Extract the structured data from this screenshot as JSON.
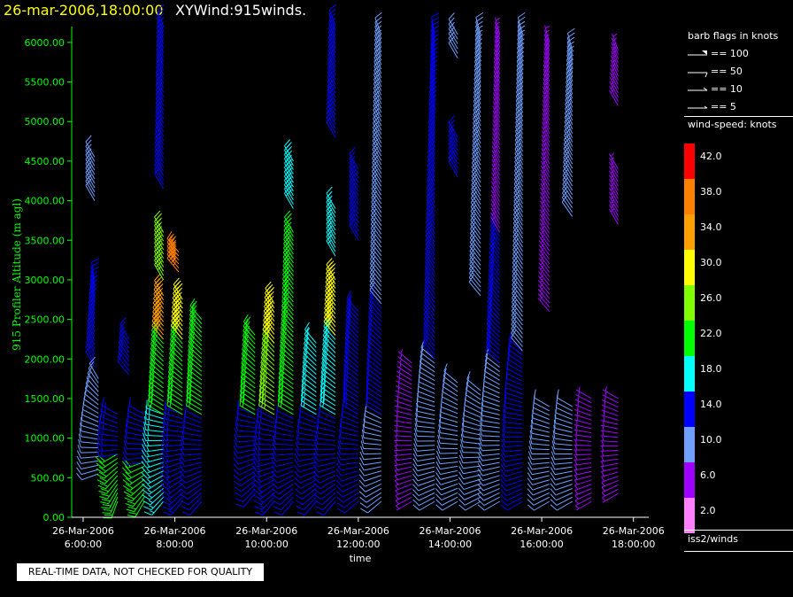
{
  "header": {
    "date_time": "26-mar-2006,18:00:00",
    "plot_name": "XYWind:915winds."
  },
  "legend": {
    "barb_title": "barb flags in knots",
    "barb_entries": [
      {
        "label": "== 100",
        "icon": "barb-pennant-100-icon"
      },
      {
        "label": "== 50",
        "icon": "barb-pennant-50-icon"
      },
      {
        "label": "== 10",
        "icon": "barb-full-line-10-icon"
      },
      {
        "label": "== 5",
        "icon": "barb-half-line-5-icon"
      }
    ],
    "speed_title": "wind-speed: knots",
    "speed_scale": [
      {
        "label": "42.0",
        "color": "#ff0000"
      },
      {
        "label": "38.0",
        "color": "#ff7f00"
      },
      {
        "label": "34.0",
        "color": "#ff9f00"
      },
      {
        "label": "30.0",
        "color": "#ffff00"
      },
      {
        "label": "26.0",
        "color": "#7fff00"
      },
      {
        "label": "22.0",
        "color": "#00ff00"
      },
      {
        "label": "18.0",
        "color": "#00ffff"
      },
      {
        "label": "14.0",
        "color": "#0000ff"
      },
      {
        "label": "10.0",
        "color": "#6f9fff"
      },
      {
        "label": "6.0",
        "color": "#9f00ff"
      },
      {
        "label": "2.0",
        "color": "#ff7fff"
      }
    ],
    "source": "iss2/winds"
  },
  "quality_note": "REAL-TIME DATA, NOT CHECKED FOR QUALITY",
  "chart_data": {
    "type": "wind-barb time-height",
    "xlabel": "time",
    "ylabel": "915 Profiler Altitude (m agl)",
    "xlim": [
      "2006-03-26 05:45",
      "2006-03-26 18:20"
    ],
    "ylim": [
      0,
      6200
    ],
    "x_ticks": [
      {
        "date": "26-Mar-2006",
        "time": "6:00:00"
      },
      {
        "date": "26-Mar-2006",
        "time": "8:00:00"
      },
      {
        "date": "26-Mar-2006",
        "time": "10:00:00"
      },
      {
        "date": "26-Mar-2006",
        "time": "12:00:00"
      },
      {
        "date": "26-Mar-2006",
        "time": "14:00:00"
      },
      {
        "date": "26-Mar-2006",
        "time": "16:00:00"
      },
      {
        "date": "26-Mar-2006",
        "time": "18:00:00"
      }
    ],
    "y_ticks": [
      "0.00",
      "500.00",
      "1000.00",
      "1500.00",
      "2000.00",
      "2500.00",
      "3000.00",
      "3500.00",
      "4000.00",
      "4500.00",
      "5000.00",
      "5500.00",
      "6000.00"
    ],
    "axis_color": "#00ff00",
    "profiles": [
      {
        "time": "06:15",
        "segments": [
          {
            "from": 1900,
            "to": 3000,
            "speed": 12,
            "dir_from": 330,
            "dir_to": 350
          },
          {
            "from": 4000,
            "to": 4550,
            "speed": 10,
            "dir_from": 330,
            "dir_to": 330
          }
        ]
      },
      {
        "time": "06:20",
        "segments": [
          {
            "from": 550,
            "to": 1750,
            "speed": 10,
            "dir_from": 250,
            "dir_to": 330
          }
        ]
      },
      {
        "time": "06:45",
        "segments": [
          {
            "from": 200,
            "to": 800,
            "speed": 22,
            "dir_from": 200,
            "dir_to": 240
          },
          {
            "from": 800,
            "to": 1300,
            "speed": 14,
            "dir_from": 260,
            "dir_to": 300
          }
        ]
      },
      {
        "time": "07:00",
        "segments": [
          {
            "from": 1800,
            "to": 2250,
            "speed": 12,
            "dir_from": 320,
            "dir_to": 330
          }
        ]
      },
      {
        "time": "07:20",
        "segments": [
          {
            "from": 200,
            "to": 700,
            "speed": 22,
            "dir_from": 210,
            "dir_to": 250
          },
          {
            "from": 700,
            "to": 1300,
            "speed": 12,
            "dir_from": 260,
            "dir_to": 300
          }
        ]
      },
      {
        "time": "07:45",
        "segments": [
          {
            "from": 200,
            "to": 1300,
            "speed": 16,
            "dir_from": 220,
            "dir_to": 290
          },
          {
            "from": 1300,
            "to": 2250,
            "speed": 22,
            "dir_from": 300,
            "dir_to": 320
          },
          {
            "from": 2250,
            "to": 2800,
            "speed": 32,
            "dir_from": 320,
            "dir_to": 330
          },
          {
            "from": 3000,
            "to": 3600,
            "speed": 26,
            "dir_from": 330,
            "dir_to": 330
          },
          {
            "from": 4150,
            "to": 6200,
            "speed": 12,
            "dir_from": 330,
            "dir_to": 340
          }
        ]
      },
      {
        "time": "08:05",
        "segments": [
          {
            "from": 3100,
            "to": 3350,
            "speed": 36,
            "dir_from": 320,
            "dir_to": 320
          }
        ]
      },
      {
        "time": "08:10",
        "segments": [
          {
            "from": 200,
            "to": 1300,
            "speed": 14,
            "dir_from": 220,
            "dir_to": 290
          },
          {
            "from": 1300,
            "to": 2250,
            "speed": 20,
            "dir_from": 300,
            "dir_to": 320
          },
          {
            "from": 2250,
            "to": 2750,
            "speed": 30,
            "dir_from": 320,
            "dir_to": 330
          }
        ]
      },
      {
        "time": "08:35",
        "segments": [
          {
            "from": 200,
            "to": 1300,
            "speed": 12,
            "dir_from": 220,
            "dir_to": 300
          },
          {
            "from": 1300,
            "to": 2500,
            "speed": 22,
            "dir_from": 300,
            "dir_to": 320
          }
        ]
      },
      {
        "time": "09:45",
        "segments": [
          {
            "from": 300,
            "to": 1300,
            "speed": 12,
            "dir_from": 220,
            "dir_to": 290
          },
          {
            "from": 1300,
            "to": 2300,
            "speed": 22,
            "dir_from": 300,
            "dir_to": 320
          }
        ]
      },
      {
        "time": "10:10",
        "segments": [
          {
            "from": 200,
            "to": 1300,
            "speed": 14,
            "dir_from": 220,
            "dir_to": 300
          },
          {
            "from": 1300,
            "to": 2200,
            "speed": 24,
            "dir_from": 300,
            "dir_to": 320
          },
          {
            "from": 2200,
            "to": 2700,
            "speed": 30,
            "dir_from": 320,
            "dir_to": 330
          }
        ]
      },
      {
        "time": "10:35",
        "segments": [
          {
            "from": 200,
            "to": 1300,
            "speed": 12,
            "dir_from": 220,
            "dir_to": 300
          },
          {
            "from": 1300,
            "to": 2500,
            "speed": 20,
            "dir_from": 300,
            "dir_to": 320
          },
          {
            "from": 2500,
            "to": 3600,
            "speed": 22,
            "dir_from": 320,
            "dir_to": 330
          },
          {
            "from": 3900,
            "to": 4500,
            "speed": 18,
            "dir_from": 330,
            "dir_to": 330
          }
        ]
      },
      {
        "time": "11:05",
        "segments": [
          {
            "from": 200,
            "to": 1300,
            "speed": 12,
            "dir_from": 220,
            "dir_to": 300
          },
          {
            "from": 1300,
            "to": 2200,
            "speed": 16,
            "dir_from": 300,
            "dir_to": 320
          }
        ]
      },
      {
        "time": "11:30",
        "segments": [
          {
            "from": 200,
            "to": 1300,
            "speed": 12,
            "dir_from": 220,
            "dir_to": 300
          },
          {
            "from": 1300,
            "to": 2300,
            "speed": 18,
            "dir_from": 300,
            "dir_to": 320
          },
          {
            "from": 2300,
            "to": 3000,
            "speed": 28,
            "dir_from": 320,
            "dir_to": 330
          },
          {
            "from": 3300,
            "to": 3900,
            "speed": 16,
            "dir_from": 330,
            "dir_to": 330
          },
          {
            "from": 4800,
            "to": 6200,
            "speed": 12,
            "dir_from": 330,
            "dir_to": 340
          }
        ]
      },
      {
        "time": "12:00",
        "segments": [
          {
            "from": 200,
            "to": 1300,
            "speed": 12,
            "dir_from": 230,
            "dir_to": 300
          },
          {
            "from": 1300,
            "to": 2600,
            "speed": 14,
            "dir_from": 300,
            "dir_to": 320
          },
          {
            "from": 3500,
            "to": 4400,
            "speed": 12,
            "dir_from": 330,
            "dir_to": 330
          }
        ]
      },
      {
        "time": "12:30",
        "segments": [
          {
            "from": 200,
            "to": 1300,
            "speed": 8,
            "dir_from": 230,
            "dir_to": 300
          },
          {
            "from": 1300,
            "to": 2700,
            "speed": 12,
            "dir_from": 300,
            "dir_to": 320
          },
          {
            "from": 2700,
            "to": 6100,
            "speed": 8,
            "dir_from": 320,
            "dir_to": 340
          }
        ]
      },
      {
        "time": "13:10",
        "segments": [
          {
            "from": 200,
            "to": 1950,
            "speed": 7,
            "dir_from": 240,
            "dir_to": 310
          }
        ]
      },
      {
        "time": "13:40",
        "segments": [
          {
            "from": 200,
            "to": 2000,
            "speed": 10,
            "dir_from": 240,
            "dir_to": 310
          },
          {
            "from": 2000,
            "to": 6100,
            "speed": 12,
            "dir_from": 320,
            "dir_to": 350
          }
        ]
      },
      {
        "time": "14:10",
        "segments": [
          {
            "from": 200,
            "to": 1700,
            "speed": 10,
            "dir_from": 240,
            "dir_to": 310
          },
          {
            "from": 4300,
            "to": 4800,
            "speed": 12,
            "dir_from": 330,
            "dir_to": 330
          },
          {
            "from": 5800,
            "to": 6100,
            "speed": 10,
            "dir_from": 330,
            "dir_to": 330
          }
        ]
      },
      {
        "time": "14:40",
        "segments": [
          {
            "from": 200,
            "to": 1600,
            "speed": 9,
            "dir_from": 240,
            "dir_to": 310
          },
          {
            "from": 2800,
            "to": 6100,
            "speed": 10,
            "dir_from": 320,
            "dir_to": 345
          }
        ]
      },
      {
        "time": "15:05",
        "segments": [
          {
            "from": 200,
            "to": 1950,
            "speed": 11,
            "dir_from": 240,
            "dir_to": 310
          },
          {
            "from": 1950,
            "to": 3600,
            "speed": 13,
            "dir_from": 310,
            "dir_to": 330
          },
          {
            "from": 3600,
            "to": 6100,
            "speed": 7,
            "dir_from": 330,
            "dir_to": 345
          }
        ]
      },
      {
        "time": "15:35",
        "segments": [
          {
            "from": 200,
            "to": 2100,
            "speed": 12,
            "dir_from": 240,
            "dir_to": 310
          },
          {
            "from": 2100,
            "to": 6100,
            "speed": 8,
            "dir_from": 320,
            "dir_to": 345
          }
        ]
      },
      {
        "time": "16:10",
        "segments": [
          {
            "from": 200,
            "to": 1400,
            "speed": 10,
            "dir_from": 240,
            "dir_to": 300
          },
          {
            "from": 2600,
            "to": 6000,
            "speed": 7,
            "dir_from": 320,
            "dir_to": 345
          }
        ]
      },
      {
        "time": "16:40",
        "segments": [
          {
            "from": 200,
            "to": 1400,
            "speed": 10,
            "dir_from": 240,
            "dir_to": 300
          },
          {
            "from": 3800,
            "to": 5900,
            "speed": 8,
            "dir_from": 325,
            "dir_to": 345
          }
        ]
      },
      {
        "time": "17:05",
        "segments": [
          {
            "from": 200,
            "to": 1500,
            "speed": 6,
            "dir_from": 240,
            "dir_to": 300
          }
        ]
      },
      {
        "time": "17:40",
        "segments": [
          {
            "from": 300,
            "to": 1500,
            "speed": 7,
            "dir_from": 240,
            "dir_to": 300
          },
          {
            "from": 3700,
            "to": 4400,
            "speed": 7,
            "dir_from": 330,
            "dir_to": 330
          },
          {
            "from": 5200,
            "to": 5900,
            "speed": 6,
            "dir_from": 330,
            "dir_to": 340
          }
        ]
      }
    ]
  }
}
